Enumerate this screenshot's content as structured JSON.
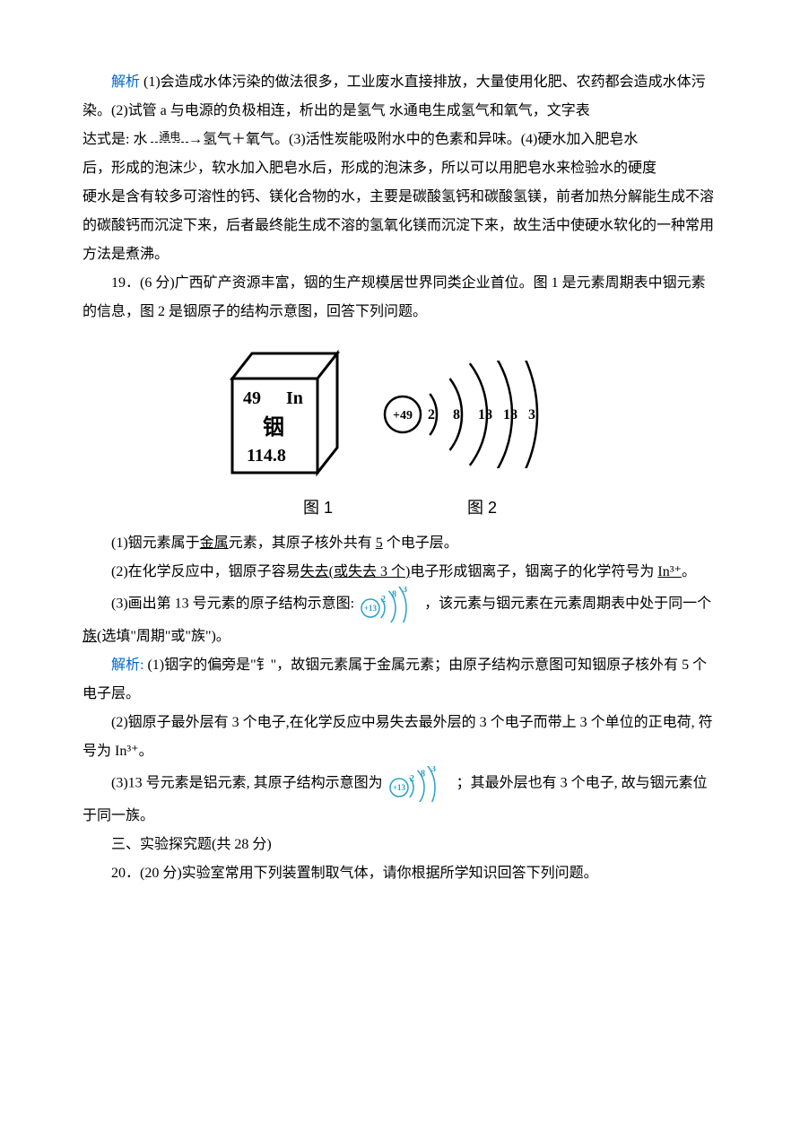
{
  "p1": {
    "jiexi": "解析",
    "t": " (1)会造成水体污染的做法很多，工业废水直接排放，大量使用化肥、农药都会造成水体污染。(2)试管 a 与电源的负极相连，析出的是氢气 水通电生成氢气和氧气，文字表"
  },
  "p2": {
    "a": "达式是: 水 ",
    "top": "通电",
    "b": "→氢气＋氧气。(3)活性炭能吸附水中的色素和异味。(4)硬水加入肥皂水"
  },
  "p3": {
    "t": "后，形成的泡沫少，软水加入肥皂水后，形成的泡沫多，所以可以用肥皂水来检验水的硬度"
  },
  "p4": {
    "t": "硬水是含有较多可溶性的钙、镁化合物的水，主要是碳酸氢钙和碳酸氢镁，前者加热分解能生成不溶的碳酸钙而沉淀下来，后者最终能生成不溶的氢氧化镁而沉淀下来，故生活中使硬水软化的一种常用方法是煮沸。"
  },
  "q19": {
    "t": "19．(6 分)广西矿产资源丰富，铟的生产规模居世界同类企业首位。图 1 是元素周期表中铟元素的信息，图 2 是铟原子的结构示意图，回答下列问题。"
  },
  "fig1": {
    "line1a": "49",
    "line1b": "In",
    "line2": "铟",
    "line3": "114.8",
    "fontfamily": "SimHei",
    "boxfill": "#ffffff",
    "stroke": "#000000"
  },
  "fig2": {
    "nucleus": "+49",
    "shells": [
      "2",
      "8",
      "18",
      "18",
      "3"
    ],
    "stroke": "#000000"
  },
  "captions": {
    "c1": "图 1",
    "c2": "图 2"
  },
  "s1": {
    "a": "(1)铟元素属于",
    "u1": "金属",
    "b": "元素，其原子核外共有 ",
    "u2": "5",
    "c": " 个电子层。"
  },
  "s2": {
    "a": "(2)在化学反应中，铟原子容易",
    "u1": "失去(或失去 3 个)",
    "b": "电子形成铟离子，铟离子的化学符号为 ",
    "u2": "In³⁺",
    "c": "。"
  },
  "s3": {
    "a": "(3)画出第 13 号元素的原子结构示意图: ",
    "b": "，该元素与铟元素在元素周期表中处于同一个",
    "u": "族",
    "c": "(选填\"周期\"或\"族\")。"
  },
  "atom13": {
    "nucleus": "+13",
    "shells": [
      "2",
      "8",
      "3"
    ],
    "stroke": "#28a0c8",
    "fill": "#ffffff",
    "fontsize": 10
  },
  "jx1": {
    "jiexi": "解析:",
    "t": " (1)铟字的偏旁是\"钅\"，故铟元素属于金属元素；由原子结构示意图可知铟原子核外有 5 个电子层。"
  },
  "jx2": {
    "t": "(2)铟原子最外层有 3 个电子,在化学反应中易失去最外层的 3 个电子而带上 3 个单位的正电荷, 符号为 In³⁺。"
  },
  "jx3": {
    "a": "(3)13 号元素是铝元素, 其原子结构示意图为 ",
    "b": " ；其最外层也有 3 个电子, 故与铟元素位于同一族。"
  },
  "sec3": {
    "t": "三、实验探究题(共 28 分)"
  },
  "q20": {
    "t": "20．(20 分)实验室常用下列装置制取气体，请你根据所学知识回答下列问题。"
  }
}
